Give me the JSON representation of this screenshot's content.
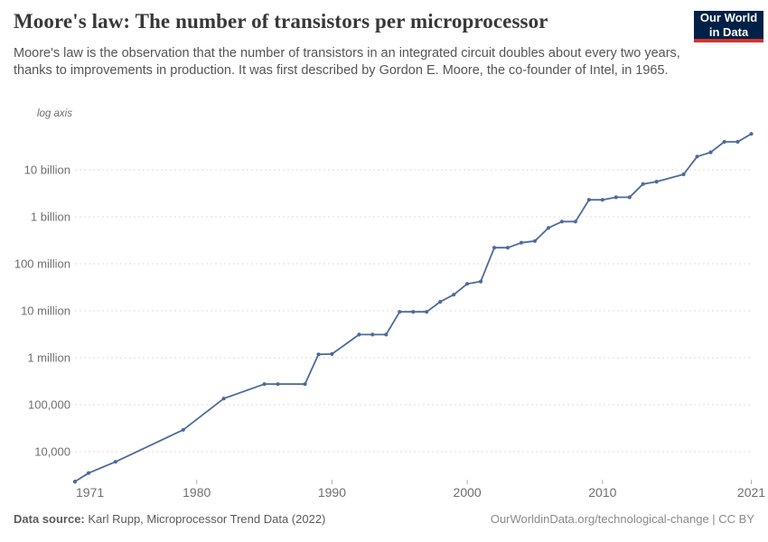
{
  "header": {
    "title": "Moore's law: The number of transistors per microprocessor",
    "logo": {
      "line1": "Our World",
      "line2": "in Data"
    }
  },
  "subtitle": "Moore's law is the observation that the number of transistors in an integrated circuit doubles about every two years, thanks to improvements in production. It was first described by Gordon E. Moore, the co-founder of Intel, in 1965.",
  "chart": {
    "log_axis_label": "log axis"
  },
  "chart_data": {
    "type": "line",
    "title": "Moore's law: The number of transistors per microprocessor",
    "xlabel": "",
    "ylabel": "",
    "log_scale_y": true,
    "grid": "dashed-horizontal",
    "legend": "none",
    "xlim": [
      1971,
      2021
    ],
    "ylim": [
      2300,
      60000000000
    ],
    "x_ticks": [
      1971,
      1980,
      1990,
      2000,
      2010,
      2021
    ],
    "y_ticks": [
      {
        "label": "10 billion",
        "value": 10000000000
      },
      {
        "label": "1 billion",
        "value": 1000000000
      },
      {
        "label": "100 million",
        "value": 100000000
      },
      {
        "label": "10 million",
        "value": 10000000
      },
      {
        "label": "1 million",
        "value": 1000000
      },
      {
        "label": "100,000",
        "value": 100000
      },
      {
        "label": "10,000",
        "value": 10000
      }
    ],
    "series": [
      {
        "name": "Transistors per microprocessor",
        "points": [
          [
            1971,
            2308
          ],
          [
            1972,
            3500
          ],
          [
            1974,
            6100
          ],
          [
            1979,
            29200
          ],
          [
            1982,
            135000
          ],
          [
            1985,
            274000
          ],
          [
            1986,
            274000
          ],
          [
            1988,
            274000
          ],
          [
            1989,
            1180000
          ],
          [
            1990,
            1200000
          ],
          [
            1992,
            3100000
          ],
          [
            1993,
            3100000
          ],
          [
            1994,
            3100000
          ],
          [
            1995,
            9500000
          ],
          [
            1996,
            9500000
          ],
          [
            1997,
            9500000
          ],
          [
            1998,
            15500000
          ],
          [
            1999,
            22000000
          ],
          [
            2000,
            37500000
          ],
          [
            2001,
            42000000
          ],
          [
            2002,
            220000000
          ],
          [
            2003,
            220000000
          ],
          [
            2004,
            280000000
          ],
          [
            2005,
            305000000
          ],
          [
            2006,
            580000000
          ],
          [
            2007,
            790000000
          ],
          [
            2008,
            790000000
          ],
          [
            2009,
            2300000000
          ],
          [
            2010,
            2300000000
          ],
          [
            2011,
            2600000000
          ],
          [
            2012,
            2600000000
          ],
          [
            2013,
            5000000000
          ],
          [
            2014,
            5600000000
          ],
          [
            2016,
            8000000000
          ],
          [
            2017,
            19200000000
          ],
          [
            2018,
            23600000000
          ],
          [
            2019,
            39500000000
          ],
          [
            2020,
            39500000000
          ],
          [
            2021,
            58200000000
          ]
        ]
      }
    ]
  },
  "footer": {
    "datasource_label": "Data source:",
    "datasource_text": "Karl Rupp, Microprocessor Trend Data (2022)",
    "attribution": "OurWorldinData.org/technological-change | CC BY"
  },
  "colors": {
    "line": "#4c6a9c",
    "grid": "#dcdcdc",
    "tick_text": "#6e6e6e",
    "logo_bg": "#002147",
    "logo_accent": "#d0342c"
  }
}
